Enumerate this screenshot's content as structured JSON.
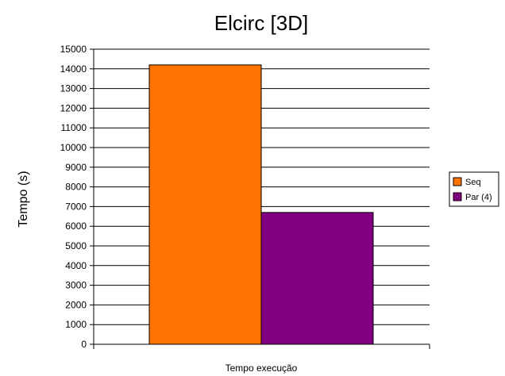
{
  "chart_data": {
    "type": "bar",
    "title": "Elcirc [3D]",
    "xlabel": "Tempo execução",
    "ylabel": "Tempo (s)",
    "categories": [
      "Tempo execução"
    ],
    "series": [
      {
        "name": "Seq",
        "values": [
          14200
        ],
        "color": "#ff7300"
      },
      {
        "name": "Par (4)",
        "values": [
          6700
        ],
        "color": "#800080"
      }
    ],
    "ylim": [
      0,
      15000
    ],
    "yticks": [
      0,
      1000,
      2000,
      3000,
      4000,
      5000,
      6000,
      7000,
      8000,
      9000,
      10000,
      11000,
      12000,
      13000,
      14000,
      15000
    ],
    "grid": true,
    "legend_position": "right"
  }
}
